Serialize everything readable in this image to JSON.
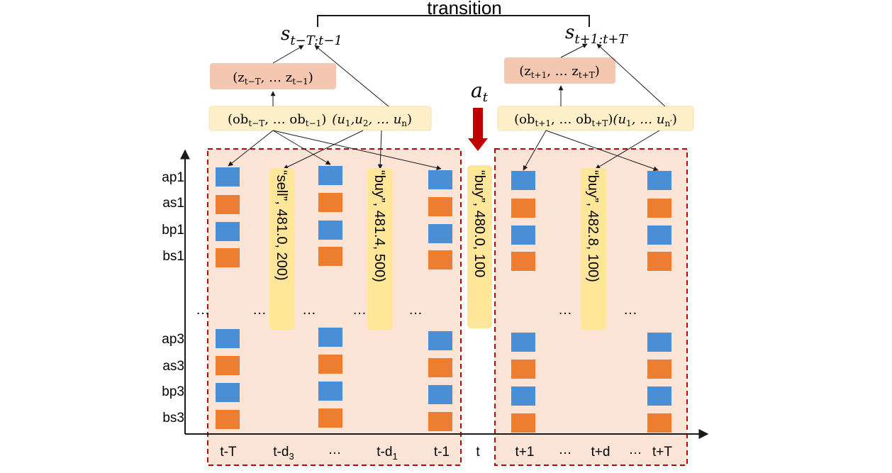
{
  "transition_label": "transition",
  "state_past": {
    "base": "s",
    "sub": "t−T:t−1"
  },
  "state_future": {
    "base": "s",
    "sub": "t+1:t+T"
  },
  "latent_past": {
    "open": "(z",
    "sub1": "t−T",
    "mid": ", … z",
    "sub2": "t−1",
    "close": ")"
  },
  "latent_future": {
    "open": "(z",
    "sub1": "t+1",
    "mid": ", … z",
    "sub2": "t+T",
    "close": ")"
  },
  "obs_past": {
    "open": "(ob",
    "sub1": "t−T",
    "mid": ", … ob",
    "sub2": "t−1",
    "close": ")",
    "u_open": "(u",
    "u_sub1": "1",
    "u_comma1": ",u",
    "u_sub2": "2",
    "u_mid": ", … u",
    "u_sub3": "n",
    "u_close": ")"
  },
  "obs_future": {
    "open": "(ob",
    "sub1": "t+1",
    "mid": ", … ob",
    "sub2": "t+T",
    "close": ")",
    "u_open": "(u",
    "u_sub1": "1",
    "u_mid": ", … u",
    "u_sub3": "n′",
    "u_close": ")"
  },
  "action": {
    "base": "a",
    "sub": "t"
  },
  "row_labels": [
    "ap1",
    "as1",
    "bp1",
    "bs1",
    "ap3",
    "as3",
    "bp3",
    "bs3"
  ],
  "ellipsis": "…",
  "x_labels": {
    "tT": "t-T",
    "td3_base": "t-d",
    "td3_sub": "3",
    "dots1": "…",
    "td1_base": "t-d",
    "td1_sub": "1",
    "t1": "t-1",
    "t": "t",
    "tp1": "t+1",
    "dots2": "…",
    "tpd": "t+d",
    "dots3": "…",
    "tpT": "t+T"
  },
  "orders": [
    "“sell”, 481.0, 200)",
    "“buy”, 481.4, 500)",
    "“buy”, 480.0, 100",
    "“buy”, 482.8, 100)"
  ],
  "colors": {
    "ask_price_block": "#4a8fd6",
    "size_block": "#ed7d31",
    "window_fill": "#fbe3d6",
    "window_border": "#c00000",
    "latent_box": "#f4c7b0",
    "obs_box": "#fdf0c8",
    "order_pill": "#ffe699",
    "action_arrow": "#c00000"
  }
}
